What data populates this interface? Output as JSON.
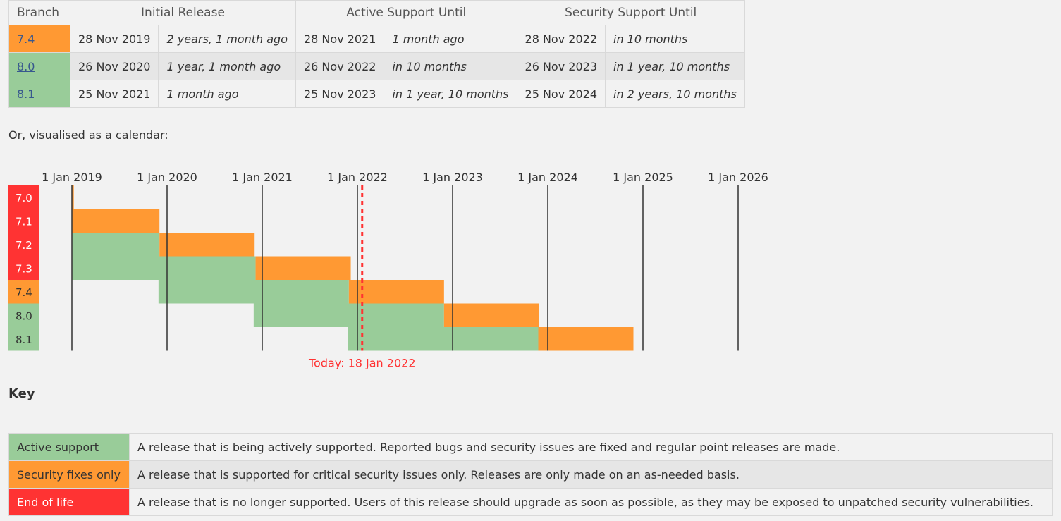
{
  "table": {
    "headers": {
      "branch": "Branch",
      "initial_release": "Initial Release",
      "active_support": "Active Support Until",
      "security_support": "Security Support Until"
    },
    "rows": [
      {
        "branch": "7.4",
        "initial_date": "28 Nov 2019",
        "initial_rel": "2 years, 1 month ago",
        "active_date": "28 Nov 2021",
        "active_rel": "1 month ago",
        "security_date": "28 Nov 2022",
        "security_rel": "in 10 months"
      },
      {
        "branch": "8.0",
        "initial_date": "26 Nov 2020",
        "initial_rel": "1 year, 1 month ago",
        "active_date": "26 Nov 2022",
        "active_rel": "in 10 months",
        "security_date": "26 Nov 2023",
        "security_rel": "in 1 year, 10 months"
      },
      {
        "branch": "8.1",
        "initial_date": "25 Nov 2021",
        "initial_rel": "1 month ago",
        "active_date": "25 Nov 2023",
        "active_rel": "in 1 year, 10 months",
        "security_date": "25 Nov 2024",
        "security_rel": "in 2 years, 10 months"
      }
    ]
  },
  "calendar_intro": "Or, visualised as a calendar:",
  "chart_data": {
    "type": "gantt",
    "years": [
      "1 Jan 2019",
      "1 Jan 2020",
      "1 Jan 2021",
      "1 Jan 2022",
      "1 Jan 2023",
      "1 Jan 2024",
      "1 Jan 2025",
      "1 Jan 2026"
    ],
    "today_label": "Today: 18 Jan 2022",
    "today": 2022.05,
    "branches": [
      {
        "name": "7.0",
        "status": "eol",
        "start": 2019.0,
        "active_end": 2019.0,
        "security_end": 2019.02
      },
      {
        "name": "7.1",
        "status": "eol",
        "start": 2019.0,
        "active_end": 2019.0,
        "security_end": 2019.92
      },
      {
        "name": "7.2",
        "status": "eol",
        "start": 2019.0,
        "active_end": 2019.92,
        "security_end": 2020.92
      },
      {
        "name": "7.3",
        "status": "eol",
        "start": 2019.0,
        "active_end": 2020.93,
        "security_end": 2021.93
      },
      {
        "name": "7.4",
        "status": "security",
        "start": 2019.91,
        "active_end": 2021.91,
        "security_end": 2022.91
      },
      {
        "name": "8.0",
        "status": "active",
        "start": 2020.91,
        "active_end": 2022.91,
        "security_end": 2023.91
      },
      {
        "name": "8.1",
        "status": "active",
        "start": 2021.9,
        "active_end": 2023.9,
        "security_end": 2024.9
      }
    ]
  },
  "key": {
    "heading": "Key",
    "items": [
      {
        "label": "Active support",
        "description": "A release that is being actively supported. Reported bugs and security issues are fixed and regular point releases are made."
      },
      {
        "label": "Security fixes only",
        "description": "A release that is supported for critical security issues only. Releases are only made on an as-needed basis."
      },
      {
        "label": "End of life",
        "description": "A release that is no longer supported. Users of this release should upgrade as soon as possible, as they may be exposed to unpatched security vulnerabilities."
      }
    ]
  },
  "colors": {
    "active": "#99cc99",
    "security": "#ff9933",
    "eol": "#ff3333",
    "today": "#ff3333",
    "link": "#37578e"
  }
}
